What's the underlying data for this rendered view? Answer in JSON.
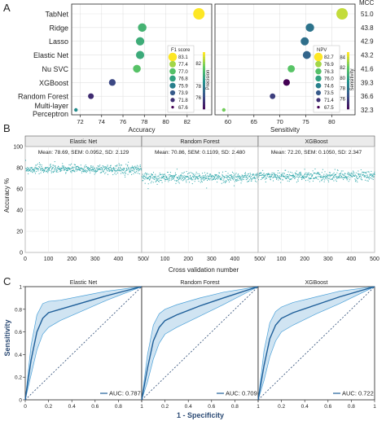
{
  "chart_data": [
    {
      "type": "scatter",
      "panel": "A",
      "xlabel": "Accuracy",
      "xticks": [
        72,
        74,
        76,
        78,
        80,
        82
      ],
      "xlim": [
        71.2,
        84.3
      ],
      "models": [
        "TabNet",
        "Ridge",
        "Lasso",
        "Elastic Net",
        "Nu SVC",
        "XGBoost",
        "Random Forest",
        "Multi-layer Perceptron"
      ],
      "model_label_lines": [
        [
          "TabNet"
        ],
        [
          "Ridge"
        ],
        [
          "Lasso"
        ],
        [
          "Elastic Net"
        ],
        [
          "Nu SVC"
        ],
        [
          "XGBoost"
        ],
        [
          "Random Forest"
        ],
        [
          "Multi-layer",
          "Perceptron"
        ]
      ],
      "accuracy": [
        83.1,
        77.8,
        77.6,
        77.6,
        77.3,
        75.0,
        73.0,
        71.6
      ],
      "precision": [
        84,
        80.5,
        80.2,
        80.1,
        81.2,
        76.2,
        75.3,
        78.8
      ],
      "legend_title": "F1 score",
      "legend_values": [
        83.1,
        77.4,
        77.0,
        76.8,
        75.9,
        73.9,
        71.8,
        67.6
      ],
      "colorbar_label": "Precision",
      "colorbar_ticks": [
        82,
        78,
        76
      ],
      "colorbar_range": [
        74,
        84
      ]
    },
    {
      "type": "scatter",
      "panel": "A",
      "xlabel": "Sensitivity",
      "xticks": [
        60,
        65,
        70,
        75,
        80
      ],
      "xlim": [
        57.5,
        84.5
      ],
      "sensitivity": [
        82.0,
        75.8,
        74.8,
        75.2,
        72.2,
        71.3,
        68.6,
        59.2
      ],
      "npv": [
        84,
        78.2,
        78.0,
        77.6,
        82.0,
        74.0,
        76.1,
        82.6
      ],
      "legend_title": "NPV",
      "legend_values": [
        82.7,
        76.9,
        76.3,
        76.0,
        74.6,
        73.5,
        71.4,
        67.5
      ],
      "colorbar_label": "Sensitivity",
      "colorbar_ticks": [
        84,
        82,
        80,
        78,
        76
      ],
      "colorbar_range": [
        74,
        85
      ],
      "mcc_label": "MCC",
      "mcc": [
        "51.0",
        "43.8",
        "42.9",
        "43.2",
        "41.6",
        "39.3",
        "36.6",
        "32.3"
      ]
    },
    {
      "type": "scatter",
      "panel": "B",
      "ylabel": "Accuracy %",
      "xlabel": "Cross validation number",
      "xticks": [
        0,
        100,
        200,
        300,
        400,
        500
      ],
      "yticks": [
        0,
        20,
        40,
        60,
        80,
        100
      ],
      "ylim": [
        0,
        100
      ],
      "n_points": 500,
      "series": [
        {
          "name": "Elastic Net",
          "stats": "Mean: 78.69, SEM: 0.0952, SD: 2.129",
          "mean": 78.69,
          "sd": 2.129
        },
        {
          "name": "Random Forest",
          "stats": "Mean: 70.86, SEM: 0.1109, SD: 2.480",
          "mean": 70.86,
          "sd": 2.48
        },
        {
          "name": "XGBoost",
          "stats": "Mean: 72.20, SEM: 0.1050, SD: 2.347",
          "mean": 72.2,
          "sd": 2.347
        }
      ]
    },
    {
      "type": "line",
      "panel": "C",
      "xlabel": "1 - Specificity",
      "ylabel": "Sensitivity",
      "xticks": [
        "0",
        "0.2",
        "0.4",
        "0.6",
        "0.8",
        "1"
      ],
      "yticks": [
        "0",
        "0.2",
        "0.4",
        "0.6",
        "0.8",
        "1"
      ],
      "xlim": [
        0,
        1
      ],
      "ylim": [
        0,
        1
      ],
      "series": [
        {
          "name": "Elastic Net",
          "auc_label": "AUC: 0.787",
          "x": [
            0,
            0.05,
            0.1,
            0.15,
            0.2,
            0.3,
            0.5,
            0.7,
            1.0
          ],
          "y": [
            0,
            0.35,
            0.6,
            0.72,
            0.77,
            0.8,
            0.86,
            0.92,
            1.0
          ],
          "upper": [
            0,
            0.48,
            0.75,
            0.85,
            0.87,
            0.88,
            0.92,
            0.96,
            1.0
          ],
          "lower": [
            0,
            0.22,
            0.44,
            0.58,
            0.64,
            0.7,
            0.79,
            0.88,
            1.0
          ]
        },
        {
          "name": "Random Forest",
          "auc_label": "AUC: 0.709",
          "x": [
            0,
            0.05,
            0.1,
            0.15,
            0.2,
            0.3,
            0.5,
            0.7,
            1.0
          ],
          "y": [
            0,
            0.28,
            0.52,
            0.64,
            0.7,
            0.75,
            0.83,
            0.9,
            1.0
          ],
          "upper": [
            0,
            0.4,
            0.66,
            0.76,
            0.8,
            0.84,
            0.9,
            0.95,
            1.0
          ],
          "lower": [
            0,
            0.16,
            0.36,
            0.5,
            0.58,
            0.64,
            0.74,
            0.84,
            1.0
          ]
        },
        {
          "name": "XGBoost",
          "auc_label": "AUC: 0.722",
          "x": [
            0,
            0.05,
            0.1,
            0.15,
            0.2,
            0.3,
            0.5,
            0.7,
            1.0
          ],
          "y": [
            0,
            0.3,
            0.54,
            0.66,
            0.72,
            0.77,
            0.84,
            0.91,
            1.0
          ],
          "upper": [
            0,
            0.43,
            0.68,
            0.78,
            0.82,
            0.86,
            0.91,
            0.96,
            1.0
          ],
          "lower": [
            0,
            0.17,
            0.38,
            0.52,
            0.6,
            0.66,
            0.76,
            0.85,
            1.0
          ]
        }
      ]
    }
  ],
  "panel_labels": {
    "a": "A",
    "b": "B",
    "c": "C"
  }
}
